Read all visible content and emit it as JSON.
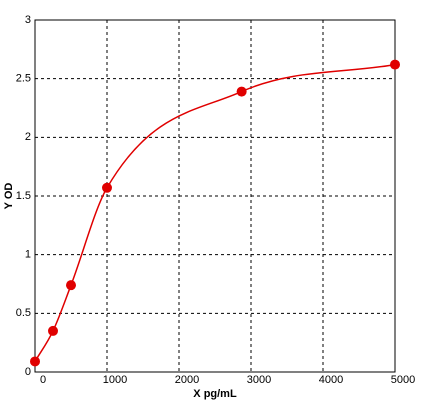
{
  "chart_data": {
    "type": "scatter",
    "x_label": "X pg/mL",
    "y_label": "Y OD",
    "series": [
      {
        "color": "#e00000",
        "x": [
          0,
          250,
          500,
          1000,
          2870,
          5000
        ],
        "values": [
          0.09,
          0.35,
          0.74,
          1.57,
          2.39,
          2.62
        ]
      }
    ],
    "xlim": [
      0,
      5000
    ],
    "xticks": [
      0,
      1000,
      2000,
      3000,
      4000,
      5000
    ],
    "ylim": [
      0,
      3
    ],
    "yticks": [
      0,
      0.5,
      1,
      1.5,
      2,
      2.5,
      3
    ],
    "grid": true
  }
}
